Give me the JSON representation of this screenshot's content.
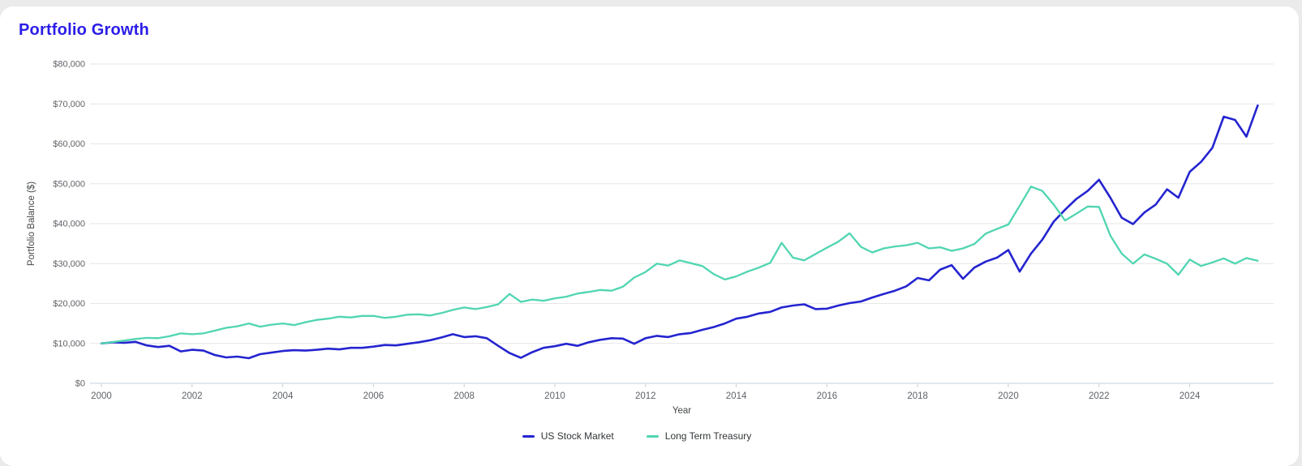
{
  "page": {
    "background": "#ebebeb",
    "card_background": "#ffffff"
  },
  "header": {
    "title": "Portfolio Growth",
    "title_color": "#2b1de8"
  },
  "chart_data": {
    "type": "line",
    "title": "Portfolio Growth",
    "xlabel": "Year",
    "ylabel": "Portfolio Balance ($)",
    "grid": "horizontal",
    "legend_position": "bottom",
    "xlim": [
      1999.75,
      2025.85
    ],
    "ylim": [
      0,
      80000
    ],
    "x_ticks": [
      2000,
      2002,
      2004,
      2006,
      2008,
      2010,
      2012,
      2014,
      2016,
      2018,
      2020,
      2022,
      2024
    ],
    "y_tick_values": [
      0,
      10000,
      20000,
      30000,
      40000,
      50000,
      60000,
      70000,
      80000
    ],
    "y_tick_labels": [
      "$0",
      "$10,000",
      "$20,000",
      "$30,000",
      "$40,000",
      "$50,000",
      "$60,000",
      "$70,000",
      "$80,000"
    ],
    "x_start": 2000,
    "x_step": 0.25,
    "colors": {
      "grid_line": "#e6e6e6",
      "axis_line": "#c6d2dc",
      "tick_label": "#5f6368",
      "axis_title": "#44474a"
    },
    "series": [
      {
        "name": "US Stock Market",
        "color": "#2424d0",
        "stroke_width": 2.6,
        "values": [
          10000,
          10300,
          10150,
          10400,
          9500,
          9100,
          9400,
          8000,
          8400,
          8200,
          7100,
          6500,
          6700,
          6300,
          7300,
          7700,
          8100,
          8300,
          8200,
          8400,
          8700,
          8500,
          8900,
          8900,
          9200,
          9600,
          9500,
          9900,
          10300,
          10800,
          11500,
          12300,
          11600,
          11800,
          11300,
          9400,
          7600,
          6400,
          7800,
          8900,
          9300,
          9900,
          9400,
          10300,
          10900,
          11300,
          11200,
          9900,
          11300,
          11900,
          11600,
          12300,
          12600,
          13400,
          14100,
          15000,
          16200,
          16700,
          17500,
          17900,
          19000,
          19500,
          19800,
          18600,
          18700,
          19500,
          20100,
          20500,
          21500,
          22400,
          23200,
          24300,
          26400,
          25800,
          28500,
          29600,
          26200,
          29000,
          30500,
          31500,
          33400,
          28000,
          32500,
          36000,
          40500,
          43500,
          46200,
          48200,
          51000,
          46500,
          41500,
          39900,
          42800,
          44800,
          48600,
          46500,
          53000,
          55500,
          59000,
          66800,
          66000,
          61800,
          69600
        ]
      },
      {
        "name": "Long Term Treasury",
        "color": "#50d5b2",
        "stroke_width": 2.3,
        "values": [
          10000,
          10350,
          10700,
          11100,
          11400,
          11300,
          11800,
          12500,
          12300,
          12500,
          13200,
          13900,
          14300,
          15000,
          14200,
          14700,
          15000,
          14600,
          15300,
          15900,
          16200,
          16700,
          16500,
          16900,
          16900,
          16400,
          16700,
          17200,
          17300,
          17000,
          17600,
          18400,
          19000,
          18600,
          19100,
          19800,
          22400,
          20400,
          21000,
          20700,
          21300,
          21700,
          22500,
          22900,
          23400,
          23200,
          24200,
          26500,
          27900,
          30000,
          29500,
          30800,
          30100,
          29400,
          27400,
          26000,
          26800,
          28000,
          29000,
          30200,
          35200,
          31500,
          30800,
          32400,
          34000,
          35500,
          37600,
          34200,
          32800,
          33800,
          34300,
          34600,
          35200,
          33800,
          34100,
          33200,
          33800,
          34900,
          37500,
          38700,
          39800,
          44500,
          49300,
          48200,
          44800,
          40800,
          42500,
          44300,
          44200,
          37000,
          32500,
          30000,
          32300,
          31200,
          30000,
          27200,
          31000,
          29400,
          30300,
          31300,
          30000,
          31400,
          30700
        ]
      }
    ]
  }
}
